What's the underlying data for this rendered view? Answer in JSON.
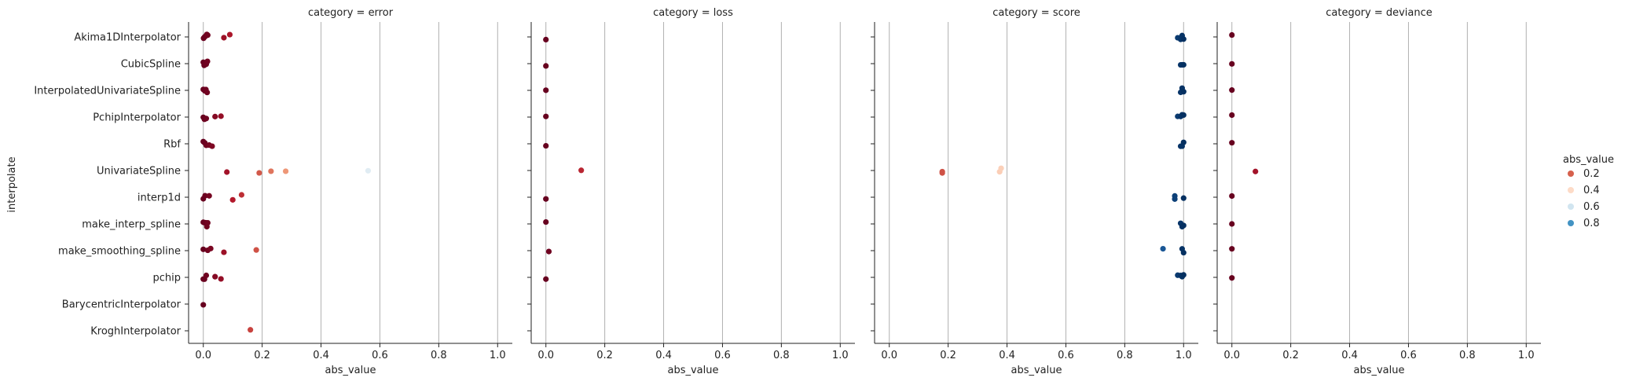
{
  "chart_data": {
    "type": "scatter",
    "subtype": "strip plot (faceted by category)",
    "y_label": "interpolate",
    "x_label": "abs_value",
    "x_ticks": [
      "0.0",
      "0.2",
      "0.4",
      "0.6",
      "0.8",
      "1.0"
    ],
    "x_tick_values": [
      0,
      0.2,
      0.4,
      0.6,
      0.8,
      1.0
    ],
    "xlim": [
      -0.05,
      1.05
    ],
    "grid": "vertical lines at x ticks",
    "categories": [
      "Akima1DInterpolator",
      "CubicSpline",
      "InterpolatedUnivariateSpline",
      "PchipInterpolator",
      "Rbf",
      "UnivariateSpline",
      "interp1d",
      "make_interp_spline",
      "make_smoothing_spline",
      "pchip",
      "BarycentricInterpolator",
      "KroghInterpolator"
    ],
    "legend": {
      "title": "abs_value",
      "placement": "right",
      "entries": [
        {
          "label": "0.2",
          "value": 0.2
        },
        {
          "label": "0.4",
          "value": 0.4
        },
        {
          "label": "0.6",
          "value": 0.6
        },
        {
          "label": "0.8",
          "value": 0.8
        }
      ]
    },
    "colormap": {
      "stops": [
        {
          "v": 0.0,
          "c": "#67001f"
        },
        {
          "v": 0.1,
          "c": "#b2182b"
        },
        {
          "v": 0.2,
          "c": "#d6604d"
        },
        {
          "v": 0.3,
          "c": "#f4a582"
        },
        {
          "v": 0.4,
          "c": "#fddbc7"
        },
        {
          "v": 0.5,
          "c": "#f7f7f7"
        },
        {
          "v": 0.6,
          "c": "#d1e5f0"
        },
        {
          "v": 0.7,
          "c": "#92c5de"
        },
        {
          "v": 0.8,
          "c": "#4393c3"
        },
        {
          "v": 0.9,
          "c": "#2166ac"
        },
        {
          "v": 1.0,
          "c": "#053061"
        }
      ]
    },
    "panels": [
      {
        "title": "category = error",
        "series": [
          {
            "category": "Akima1DInterpolator",
            "values": [
              0.001,
              0.004,
              0.008,
              0.012,
              0.015,
              0.07,
              0.09
            ]
          },
          {
            "category": "CubicSpline",
            "values": [
              0.0,
              0.003,
              0.006,
              0.01,
              0.014
            ]
          },
          {
            "category": "InterpolatedUnivariateSpline",
            "values": [
              0.0,
              0.002,
              0.005,
              0.009,
              0.013
            ]
          },
          {
            "category": "PchipInterpolator",
            "values": [
              0.0,
              0.004,
              0.01,
              0.04,
              0.06
            ]
          },
          {
            "category": "Rbf",
            "values": [
              0.0,
              0.005,
              0.01,
              0.02,
              0.03
            ]
          },
          {
            "category": "UnivariateSpline",
            "values": [
              0.08,
              0.19,
              0.23,
              0.28,
              0.56
            ]
          },
          {
            "category": "interp1d",
            "values": [
              0.0,
              0.006,
              0.02,
              0.1,
              0.13
            ]
          },
          {
            "category": "make_interp_spline",
            "values": [
              0.0,
              0.004,
              0.008,
              0.012,
              0.015
            ]
          },
          {
            "category": "make_smoothing_spline",
            "values": [
              0.0,
              0.015,
              0.025,
              0.07,
              0.18
            ]
          },
          {
            "category": "pchip",
            "values": [
              0.0,
              0.004,
              0.01,
              0.04,
              0.06
            ]
          },
          {
            "category": "BarycentricInterpolator",
            "values": [
              0.0
            ]
          },
          {
            "category": "KroghInterpolator",
            "values": [
              0.16
            ]
          }
        ]
      },
      {
        "title": "category = loss",
        "series": [
          {
            "category": "Akima1DInterpolator",
            "values": [
              0.0
            ]
          },
          {
            "category": "CubicSpline",
            "values": [
              0.0
            ]
          },
          {
            "category": "InterpolatedUnivariateSpline",
            "values": [
              0.0
            ]
          },
          {
            "category": "PchipInterpolator",
            "values": [
              0.0
            ]
          },
          {
            "category": "Rbf",
            "values": [
              0.0
            ]
          },
          {
            "category": "UnivariateSpline",
            "values": [
              0.12
            ]
          },
          {
            "category": "interp1d",
            "values": [
              0.0
            ]
          },
          {
            "category": "make_interp_spline",
            "values": [
              0.0
            ]
          },
          {
            "category": "make_smoothing_spline",
            "values": [
              0.01
            ]
          },
          {
            "category": "pchip",
            "values": [
              0.0
            ]
          }
        ]
      },
      {
        "title": "category = score",
        "series": [
          {
            "category": "Akima1DInterpolator",
            "values": [
              0.98,
              0.99,
              0.995,
              1.0
            ]
          },
          {
            "category": "CubicSpline",
            "values": [
              0.99,
              0.995,
              1.0
            ]
          },
          {
            "category": "InterpolatedUnivariateSpline",
            "values": [
              0.99,
              0.995,
              1.0
            ]
          },
          {
            "category": "PchipInterpolator",
            "values": [
              0.98,
              0.99,
              0.995,
              1.0
            ]
          },
          {
            "category": "Rbf",
            "values": [
              0.99,
              0.995,
              1.0
            ]
          },
          {
            "category": "UnivariateSpline",
            "values": [
              0.18,
              0.18,
              0.375,
              0.38
            ]
          },
          {
            "category": "interp1d",
            "values": [
              0.97,
              0.97,
              1.0
            ]
          },
          {
            "category": "make_interp_spline",
            "values": [
              0.99,
              0.995,
              1.0
            ]
          },
          {
            "category": "make_smoothing_spline",
            "values": [
              0.93,
              0.995,
              1.0
            ]
          },
          {
            "category": "pchip",
            "values": [
              0.98,
              0.99,
              0.995,
              1.0
            ]
          }
        ]
      },
      {
        "title": "category = deviance",
        "series": [
          {
            "category": "Akima1DInterpolator",
            "values": [
              0.0
            ]
          },
          {
            "category": "CubicSpline",
            "values": [
              0.0
            ]
          },
          {
            "category": "InterpolatedUnivariateSpline",
            "values": [
              0.0
            ]
          },
          {
            "category": "PchipInterpolator",
            "values": [
              0.0
            ]
          },
          {
            "category": "Rbf",
            "values": [
              0.0
            ]
          },
          {
            "category": "UnivariateSpline",
            "values": [
              0.08
            ]
          },
          {
            "category": "interp1d",
            "values": [
              0.0
            ]
          },
          {
            "category": "make_interp_spline",
            "values": [
              0.0
            ]
          },
          {
            "category": "make_smoothing_spline",
            "values": [
              0.0
            ]
          },
          {
            "category": "pchip",
            "values": [
              0.0
            ]
          }
        ]
      }
    ]
  }
}
